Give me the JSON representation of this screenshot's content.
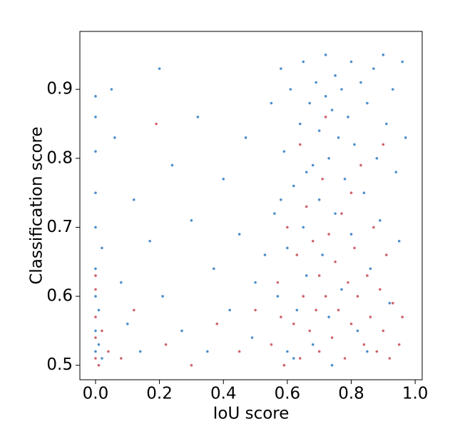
{
  "chart_data": {
    "type": "scatter",
    "xlabel": "IoU score",
    "ylabel": "Classification score",
    "xlim": [
      -0.049,
      1.022
    ],
    "ylim": [
      0.479,
      0.984
    ],
    "xticks": [
      {
        "value": 0,
        "label": "0.0"
      },
      0.2,
      0.4,
      0.6,
      0.8,
      {
        "value": 1,
        "label": "1.0"
      }
    ],
    "yticks": [
      0.5,
      0.6,
      0.7,
      0.8,
      0.9
    ],
    "grid": false,
    "series": [
      {
        "color": "#4f8fcc",
        "x": [
          0,
          0,
          0,
          0,
          0,
          0,
          0,
          0,
          0,
          0.01,
          0.01,
          0.02,
          0.02,
          0.05,
          0.06,
          0.08,
          0.1,
          0.12,
          0.14,
          0.17,
          0.2,
          0.21,
          0.24,
          0.27,
          0.3,
          0.32,
          0.35,
          0.37,
          0.4,
          0.42,
          0.45,
          0.47,
          0.49,
          0.5,
          0.55,
          0.56,
          0.57,
          0.58,
          0.59,
          0.6,
          0.6,
          0.61,
          0.62,
          0.63,
          0.64,
          0.65,
          0.65,
          0.66,
          0.67,
          0.68,
          0.68,
          0.69,
          0.7,
          0.7,
          0.71,
          0.72,
          0.72,
          0.73,
          0.73,
          0.74,
          0.75,
          0.75,
          0.76,
          0.77,
          0.77,
          0.78,
          0.79,
          0.8,
          0.8,
          0.81,
          0.82,
          0.83,
          0.84,
          0.85,
          0.86,
          0.87,
          0.88,
          0.89,
          0.9,
          0.91,
          0.92,
          0.93,
          0.94,
          0.95,
          0.96,
          0.97,
          0.62,
          0.74,
          0.85,
          0.53,
          0.58,
          0.66
        ],
        "y": [
          0.52,
          0.55,
          0.6,
          0.64,
          0.7,
          0.75,
          0.81,
          0.86,
          0.89,
          0.53,
          0.58,
          0.51,
          0.67,
          0.9,
          0.83,
          0.62,
          0.56,
          0.74,
          0.52,
          0.68,
          0.93,
          0.6,
          0.79,
          0.55,
          0.71,
          0.86,
          0.52,
          0.64,
          0.77,
          0.58,
          0.69,
          0.83,
          0.54,
          0.62,
          0.88,
          0.72,
          0.6,
          0.93,
          0.81,
          0.52,
          0.67,
          0.9,
          0.76,
          0.58,
          0.85,
          0.94,
          0.7,
          0.63,
          0.88,
          0.79,
          0.53,
          0.91,
          0.74,
          0.84,
          0.66,
          0.95,
          0.89,
          0.8,
          0.57,
          0.87,
          0.72,
          0.92,
          0.83,
          0.61,
          0.9,
          0.77,
          0.86,
          0.94,
          0.69,
          0.82,
          0.55,
          0.91,
          0.75,
          0.88,
          0.64,
          0.93,
          0.8,
          0.71,
          0.95,
          0.85,
          0.59,
          0.9,
          0.78,
          0.68,
          0.94,
          0.83,
          0.51,
          0.5,
          0.52,
          0.66,
          0.74,
          0.78
        ]
      },
      {
        "color": "#d0646e",
        "x": [
          0,
          0,
          0,
          0,
          0,
          0.01,
          0.02,
          0.04,
          0.08,
          0.12,
          0.19,
          0.22,
          0.3,
          0.38,
          0.45,
          0.5,
          0.55,
          0.57,
          0.59,
          0.6,
          0.62,
          0.63,
          0.64,
          0.65,
          0.66,
          0.67,
          0.68,
          0.69,
          0.7,
          0.7,
          0.71,
          0.72,
          0.73,
          0.74,
          0.75,
          0.76,
          0.77,
          0.78,
          0.79,
          0.8,
          0.81,
          0.82,
          0.83,
          0.84,
          0.85,
          0.86,
          0.87,
          0.88,
          0.89,
          0.9,
          0.91,
          0.92,
          0.93,
          0.95,
          0.96,
          0.64,
          0.72,
          0.8,
          0.58,
          0.9
        ],
        "y": [
          0.51,
          0.54,
          0.57,
          0.61,
          0.63,
          0.5,
          0.55,
          0.52,
          0.51,
          0.58,
          0.85,
          0.53,
          0.5,
          0.56,
          0.52,
          0.58,
          0.53,
          0.62,
          0.5,
          0.7,
          0.56,
          0.66,
          0.51,
          0.6,
          0.73,
          0.55,
          0.68,
          0.58,
          0.63,
          0.52,
          0.77,
          0.6,
          0.69,
          0.54,
          0.65,
          0.58,
          0.72,
          0.51,
          0.62,
          0.56,
          0.67,
          0.6,
          0.79,
          0.53,
          0.63,
          0.57,
          0.7,
          0.52,
          0.61,
          0.55,
          0.66,
          0.51,
          0.59,
          0.53,
          0.57,
          0.82,
          0.86,
          0.75,
          0.57,
          0.82
        ]
      }
    ]
  }
}
